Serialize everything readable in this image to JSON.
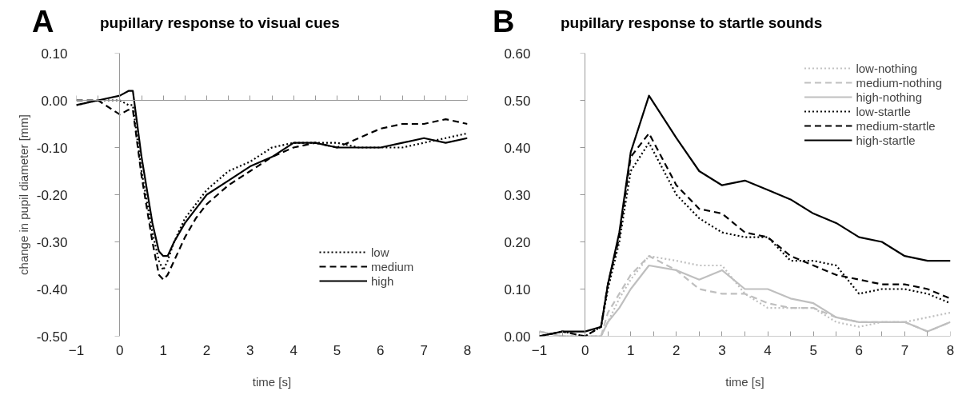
{
  "chart_data": [
    {
      "type": "line",
      "title": "pupillary response to visual cues",
      "annotations": [
        "A"
      ],
      "xlabel": "time [s]",
      "ylabel": "change in pupil diameter [mm]",
      "x": [
        -1,
        -0.5,
        0,
        0.2,
        0.3,
        0.5,
        0.75,
        0.9,
        1,
        1.1,
        1.25,
        1.5,
        1.75,
        2,
        2.5,
        3,
        3.5,
        4,
        4.5,
        5,
        5.5,
        6,
        6.5,
        7,
        7.5,
        8
      ],
      "series": [
        {
          "name": "low",
          "color": "#000000",
          "line_style": "dotted",
          "values": [
            -0.01,
            0.0,
            0.0,
            -0.01,
            -0.01,
            -0.15,
            -0.28,
            -0.34,
            -0.36,
            -0.34,
            -0.3,
            -0.25,
            -0.22,
            -0.19,
            -0.15,
            -0.13,
            -0.1,
            -0.09,
            -0.09,
            -0.09,
            -0.1,
            -0.1,
            -0.1,
            -0.09,
            -0.08,
            -0.07
          ]
        },
        {
          "name": "medium",
          "color": "#000000",
          "line_style": "dashed",
          "values": [
            0.0,
            0.0,
            -0.03,
            -0.02,
            -0.02,
            -0.16,
            -0.3,
            -0.37,
            -0.38,
            -0.37,
            -0.34,
            -0.29,
            -0.25,
            -0.22,
            -0.18,
            -0.15,
            -0.12,
            -0.1,
            -0.09,
            -0.1,
            -0.08,
            -0.06,
            -0.05,
            -0.05,
            -0.04,
            -0.05
          ]
        },
        {
          "name": "high",
          "color": "#000000",
          "line_style": "solid",
          "values": [
            -0.01,
            0.0,
            0.01,
            0.02,
            0.02,
            -0.12,
            -0.26,
            -0.32,
            -0.33,
            -0.33,
            -0.3,
            -0.26,
            -0.23,
            -0.2,
            -0.17,
            -0.14,
            -0.12,
            -0.09,
            -0.09,
            -0.1,
            -0.1,
            -0.1,
            -0.09,
            -0.08,
            -0.09,
            -0.08
          ]
        }
      ],
      "xlim": [
        -1,
        8
      ],
      "xticks": [
        -1,
        0,
        1,
        2,
        3,
        4,
        5,
        6,
        7,
        8
      ],
      "ylim": [
        -0.5,
        0.1
      ],
      "yticks": [
        {
          "value": -0.5,
          "label": "-0.50"
        },
        {
          "value": -0.4,
          "label": "-0.40"
        },
        {
          "value": -0.3,
          "label": "-0.30"
        },
        {
          "value": -0.2,
          "label": "-0.20"
        },
        {
          "value": -0.1,
          "label": "-0.10"
        },
        {
          "value": 0,
          "label": "0.00"
        },
        {
          "value": 0.1,
          "label": "0.10"
        }
      ],
      "ref_lines": [
        {
          "axis": "x",
          "value": 0,
          "label": null
        },
        {
          "axis": "y",
          "value": 0,
          "label": null
        }
      ],
      "legend": "right",
      "marker": "none"
    },
    {
      "type": "line",
      "title": "pupillary response to startle sounds",
      "annotations": [
        "B"
      ],
      "xlabel": "time [s]",
      "x": [
        -1,
        -0.5,
        0,
        0.35,
        0.5,
        0.75,
        1,
        1.4,
        2,
        2.5,
        3,
        3.5,
        4,
        4.5,
        5,
        5.5,
        6,
        6.5,
        7,
        7.5,
        8
      ],
      "series": [
        {
          "name": "low-nothing",
          "color": "#bfbfbf",
          "line_style": "dotted",
          "values": [
            0.01,
            0.0,
            0.0,
            0.0,
            0.03,
            0.08,
            0.12,
            0.17,
            0.16,
            0.15,
            0.15,
            0.09,
            0.06,
            0.06,
            0.06,
            0.03,
            0.02,
            0.03,
            0.03,
            0.04,
            0.05
          ]
        },
        {
          "name": "medium-nothing",
          "color": "#bfbfbf",
          "line_style": "dashed",
          "values": [
            0.01,
            0.0,
            0.0,
            0.0,
            0.05,
            0.09,
            0.13,
            0.17,
            0.14,
            0.1,
            0.09,
            0.09,
            0.07,
            0.06,
            0.06,
            0.04,
            0.03,
            0.03,
            0.03,
            0.01,
            0.03
          ]
        },
        {
          "name": "high-nothing",
          "color": "#bfbfbf",
          "line_style": "solid",
          "values": [
            0.01,
            0.0,
            0.0,
            0.0,
            0.03,
            0.06,
            0.1,
            0.15,
            0.14,
            0.12,
            0.14,
            0.1,
            0.1,
            0.08,
            0.07,
            0.04,
            0.03,
            0.03,
            0.03,
            0.01,
            0.03
          ]
        },
        {
          "name": "low-startle",
          "color": "#000000",
          "line_style": "dotted",
          "values": [
            0.0,
            0.01,
            0.0,
            0.02,
            0.1,
            0.2,
            0.35,
            0.41,
            0.3,
            0.25,
            0.22,
            0.21,
            0.21,
            0.16,
            0.16,
            0.15,
            0.09,
            0.1,
            0.1,
            0.09,
            0.07
          ]
        },
        {
          "name": "medium-startle",
          "color": "#000000",
          "line_style": "dashed",
          "values": [
            0.0,
            0.01,
            0.0,
            0.02,
            0.11,
            0.21,
            0.38,
            0.43,
            0.32,
            0.27,
            0.26,
            0.22,
            0.21,
            0.17,
            0.15,
            0.13,
            0.12,
            0.11,
            0.11,
            0.1,
            0.08
          ]
        },
        {
          "name": "high-startle",
          "color": "#000000",
          "line_style": "solid",
          "values": [
            0.0,
            0.01,
            0.01,
            0.02,
            0.11,
            0.22,
            0.39,
            0.51,
            0.42,
            0.35,
            0.32,
            0.33,
            0.31,
            0.29,
            0.26,
            0.24,
            0.21,
            0.2,
            0.17,
            0.16,
            0.16
          ]
        }
      ],
      "xlim": [
        -1,
        8
      ],
      "xticks": [
        -1,
        0,
        1,
        2,
        3,
        4,
        5,
        6,
        7,
        8
      ],
      "ylim": [
        0,
        0.6
      ],
      "yticks": [
        {
          "value": 0,
          "label": "0.00"
        },
        {
          "value": 0.1,
          "label": "0.10"
        },
        {
          "value": 0.2,
          "label": "0.20"
        },
        {
          "value": 0.3,
          "label": "0.30"
        },
        {
          "value": 0.4,
          "label": "0.40"
        },
        {
          "value": 0.5,
          "label": "0.50"
        },
        {
          "value": 0.6,
          "label": "0.60"
        }
      ],
      "ref_lines": [
        {
          "axis": "x",
          "value": 0,
          "label": null
        }
      ],
      "legend": "top right",
      "marker": "none"
    }
  ]
}
